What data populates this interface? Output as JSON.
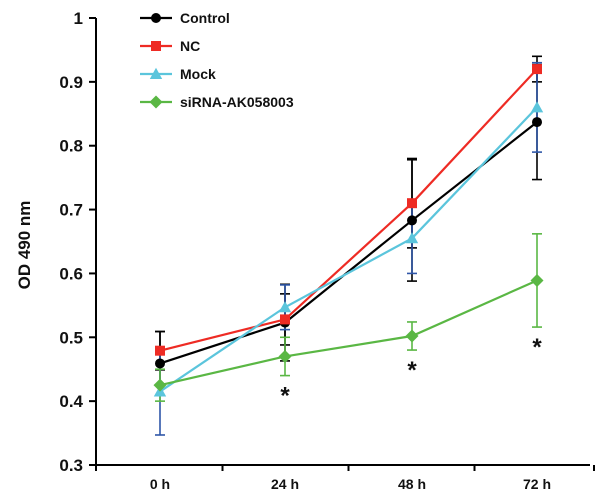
{
  "chart_data": {
    "type": "line",
    "title": "",
    "xlabel": "",
    "ylabel": "OD 490 nm",
    "categories": [
      "0 h",
      "24 h",
      "48 h",
      "72 h"
    ],
    "ylim": [
      0.3,
      1.0
    ],
    "yticks": [
      "0.3",
      "0.4",
      "0.5",
      "0.6",
      "0.7",
      "0.8",
      "0.9",
      "1"
    ],
    "grid": false,
    "legend_position": "top-left",
    "series": [
      {
        "name": "Control",
        "color": "#000000",
        "marker": "circle",
        "values": [
          0.459,
          0.523,
          0.683,
          0.837
        ],
        "errors": [
          0.05,
          0.06,
          0.095,
          0.09
        ]
      },
      {
        "name": "NC",
        "color": "#ee2b24",
        "marker": "square",
        "values": [
          0.479,
          0.528,
          0.71,
          0.92
        ],
        "errors": [
          0.03,
          0.04,
          0.07,
          0.02
        ]
      },
      {
        "name": "Mock",
        "color": "#5bc5dc",
        "marker": "triangle",
        "values": [
          0.415,
          0.547,
          0.655,
          0.86
        ],
        "errors": [
          0.068,
          0.035,
          0.055,
          0.07
        ]
      },
      {
        "name": "siRNA-AK058003",
        "color": "#5ab744",
        "marker": "diamond",
        "values": [
          0.425,
          0.47,
          0.502,
          0.589
        ],
        "errors": [
          0.025,
          0.03,
          0.022,
          0.073
        ]
      }
    ],
    "errorbar_color": "#2f57a8",
    "annotations": [
      {
        "category": "24 h",
        "text": "*"
      },
      {
        "category": "48 h",
        "text": "*"
      },
      {
        "category": "72 h",
        "text": "*"
      }
    ]
  }
}
